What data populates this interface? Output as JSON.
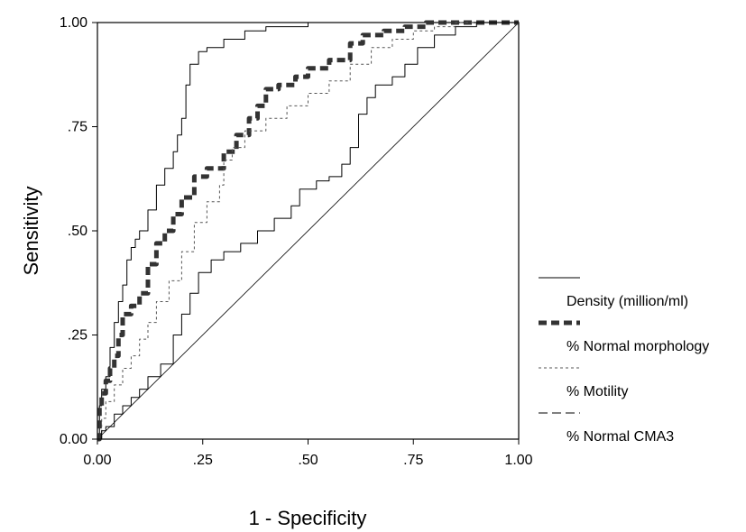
{
  "chart_data": {
    "type": "line",
    "title": "",
    "xlabel": "1 - Specificity",
    "ylabel": "Sensitivity",
    "xlim": [
      0,
      1
    ],
    "ylim": [
      0,
      1
    ],
    "x_ticks": [
      "0.00",
      ".25",
      ".50",
      ".75",
      "1.00"
    ],
    "y_ticks": [
      "0.00",
      ".25",
      ".50",
      ".75",
      "1.00"
    ],
    "grid": false,
    "legend_position": "right",
    "series": [
      {
        "name": "Density (million/ml)",
        "color": "#000000",
        "style": "solid-thin",
        "points": [
          [
            0,
            0
          ],
          [
            0.005,
            0.08
          ],
          [
            0.01,
            0.12
          ],
          [
            0.02,
            0.15
          ],
          [
            0.03,
            0.22
          ],
          [
            0.04,
            0.28
          ],
          [
            0.05,
            0.33
          ],
          [
            0.06,
            0.37
          ],
          [
            0.07,
            0.43
          ],
          [
            0.08,
            0.46
          ],
          [
            0.09,
            0.48
          ],
          [
            0.1,
            0.5
          ],
          [
            0.12,
            0.55
          ],
          [
            0.14,
            0.61
          ],
          [
            0.16,
            0.65
          ],
          [
            0.18,
            0.69
          ],
          [
            0.19,
            0.73
          ],
          [
            0.2,
            0.77
          ],
          [
            0.21,
            0.85
          ],
          [
            0.22,
            0.9
          ],
          [
            0.24,
            0.93
          ],
          [
            0.26,
            0.94
          ],
          [
            0.3,
            0.96
          ],
          [
            0.35,
            0.98
          ],
          [
            0.4,
            0.99
          ],
          [
            0.5,
            1.0
          ],
          [
            0.6,
            1.0
          ],
          [
            0.8,
            1.0
          ],
          [
            1.0,
            1.0
          ]
        ]
      },
      {
        "name": "% Normal morphology",
        "color": "#333333",
        "style": "dashed-thick",
        "points": [
          [
            0,
            0
          ],
          [
            0.005,
            0.08
          ],
          [
            0.01,
            0.11
          ],
          [
            0.02,
            0.14
          ],
          [
            0.03,
            0.17
          ],
          [
            0.04,
            0.2
          ],
          [
            0.05,
            0.25
          ],
          [
            0.06,
            0.3
          ],
          [
            0.08,
            0.32
          ],
          [
            0.1,
            0.35
          ],
          [
            0.12,
            0.42
          ],
          [
            0.14,
            0.47
          ],
          [
            0.16,
            0.5
          ],
          [
            0.18,
            0.54
          ],
          [
            0.2,
            0.58
          ],
          [
            0.23,
            0.63
          ],
          [
            0.26,
            0.65
          ],
          [
            0.3,
            0.69
          ],
          [
            0.33,
            0.73
          ],
          [
            0.36,
            0.77
          ],
          [
            0.38,
            0.8
          ],
          [
            0.4,
            0.84
          ],
          [
            0.43,
            0.85
          ],
          [
            0.47,
            0.87
          ],
          [
            0.5,
            0.89
          ],
          [
            0.55,
            0.91
          ],
          [
            0.6,
            0.95
          ],
          [
            0.63,
            0.97
          ],
          [
            0.68,
            0.98
          ],
          [
            0.73,
            0.99
          ],
          [
            0.78,
            1.0
          ],
          [
            0.9,
            1.0
          ],
          [
            1.0,
            1.0
          ]
        ]
      },
      {
        "name": "% Motility",
        "color": "#555555",
        "style": "dotted",
        "points": [
          [
            0,
            0
          ],
          [
            0.01,
            0.05
          ],
          [
            0.02,
            0.09
          ],
          [
            0.04,
            0.13
          ],
          [
            0.06,
            0.17
          ],
          [
            0.08,
            0.2
          ],
          [
            0.1,
            0.24
          ],
          [
            0.12,
            0.28
          ],
          [
            0.14,
            0.33
          ],
          [
            0.17,
            0.38
          ],
          [
            0.2,
            0.45
          ],
          [
            0.23,
            0.52
          ],
          [
            0.26,
            0.57
          ],
          [
            0.29,
            0.61
          ],
          [
            0.3,
            0.67
          ],
          [
            0.32,
            0.7
          ],
          [
            0.35,
            0.74
          ],
          [
            0.4,
            0.77
          ],
          [
            0.45,
            0.8
          ],
          [
            0.5,
            0.83
          ],
          [
            0.55,
            0.86
          ],
          [
            0.6,
            0.9
          ],
          [
            0.65,
            0.94
          ],
          [
            0.7,
            0.96
          ],
          [
            0.75,
            0.98
          ],
          [
            0.8,
            0.99
          ],
          [
            0.85,
            1.0
          ],
          [
            1.0,
            1.0
          ]
        ]
      },
      {
        "name": "% Normal CMA3",
        "color": "#000000",
        "style": "solid-thin-2",
        "points": [
          [
            0,
            0
          ],
          [
            0.01,
            0.02
          ],
          [
            0.02,
            0.03
          ],
          [
            0.04,
            0.06
          ],
          [
            0.06,
            0.08
          ],
          [
            0.08,
            0.1
          ],
          [
            0.1,
            0.12
          ],
          [
            0.12,
            0.15
          ],
          [
            0.15,
            0.18
          ],
          [
            0.18,
            0.25
          ],
          [
            0.2,
            0.3
          ],
          [
            0.22,
            0.35
          ],
          [
            0.24,
            0.4
          ],
          [
            0.27,
            0.43
          ],
          [
            0.3,
            0.45
          ],
          [
            0.34,
            0.47
          ],
          [
            0.38,
            0.5
          ],
          [
            0.42,
            0.53
          ],
          [
            0.46,
            0.56
          ],
          [
            0.48,
            0.6
          ],
          [
            0.52,
            0.62
          ],
          [
            0.55,
            0.63
          ],
          [
            0.58,
            0.66
          ],
          [
            0.6,
            0.7
          ],
          [
            0.62,
            0.78
          ],
          [
            0.64,
            0.82
          ],
          [
            0.66,
            0.85
          ],
          [
            0.7,
            0.87
          ],
          [
            0.73,
            0.9
          ],
          [
            0.76,
            0.94
          ],
          [
            0.8,
            0.97
          ],
          [
            0.85,
            0.99
          ],
          [
            0.9,
            1.0
          ],
          [
            1.0,
            1.0
          ]
        ]
      }
    ]
  }
}
